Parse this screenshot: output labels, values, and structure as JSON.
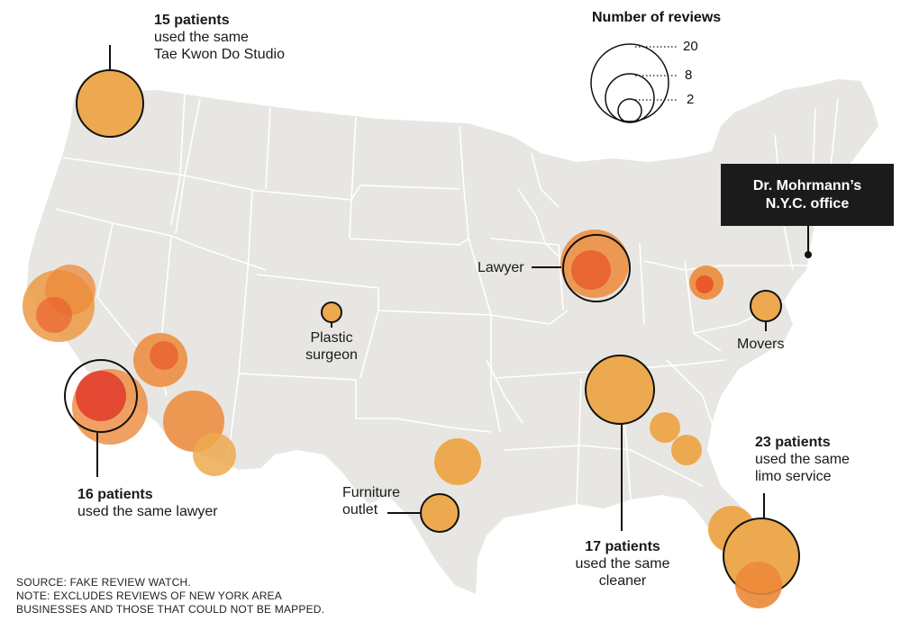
{
  "legend": {
    "title": "Number of reviews",
    "values": [
      "20",
      "8",
      "2"
    ]
  },
  "office": {
    "line1": "Dr. Mohrmann’s",
    "line2": "N.Y.C. office"
  },
  "labels": {
    "taekwondo": {
      "bold": "15 patients",
      "line2": "used the same",
      "line3": "Tae Kwon Do Studio"
    },
    "lawyer_ca": {
      "bold": "16 patients",
      "line2": "used the same lawyer"
    },
    "plastic": {
      "line1": "Plastic",
      "line2": "surgeon"
    },
    "furniture": {
      "line1": "Furniture",
      "line2": "outlet"
    },
    "lawyer_il": {
      "line1": "Lawyer"
    },
    "movers": {
      "line1": "Movers"
    },
    "cleaner": {
      "bold": "17 patients",
      "line2": "used the same",
      "line3": "cleaner"
    },
    "limo": {
      "bold": "23 patients",
      "line2": "used the same",
      "line3": "limo service"
    }
  },
  "note": {
    "line1": "SOURCE: FAKE REVIEW WATCH.",
    "line2": "NOTE: EXCLUDES REVIEWS OF NEW YORK AREA",
    "line3": "BUSINESSES AND THOSE THAT COULD NOT BE MAPPED."
  },
  "colors": {
    "land": "#e8e6e2",
    "border": "#ffffff",
    "bubble_light": "#eda94f",
    "bubble_mid": "#ec8a3a",
    "bubble_dark": "#e9592a",
    "bubble_red": "#e03a2c",
    "outline": "#111111"
  }
}
